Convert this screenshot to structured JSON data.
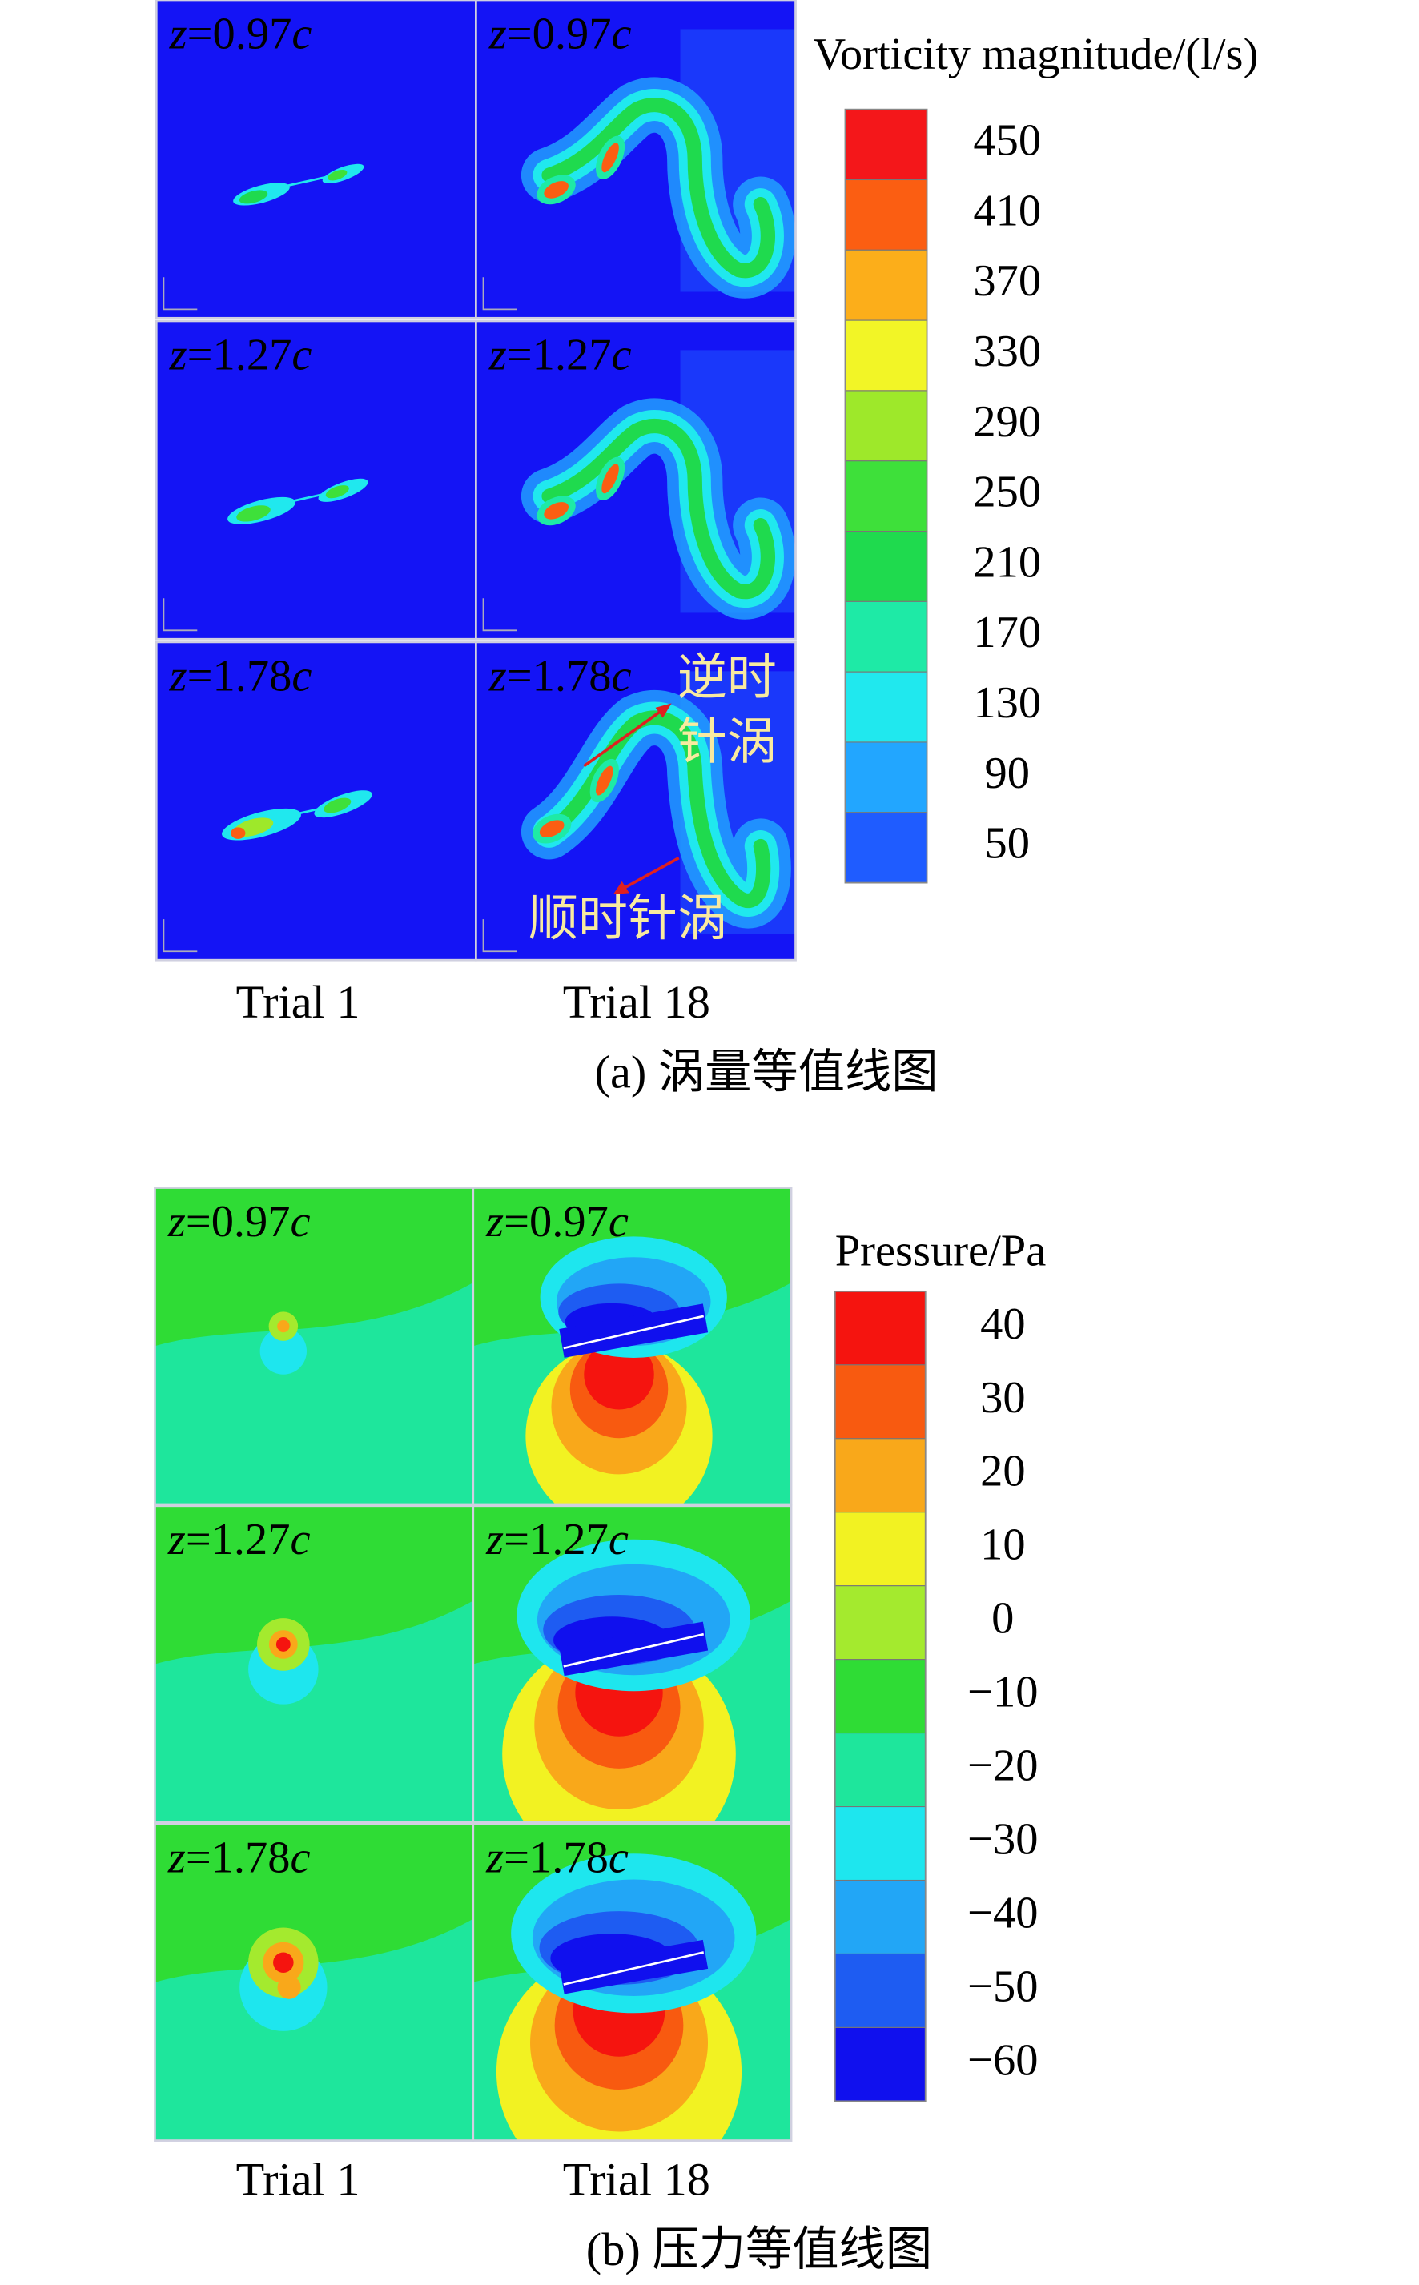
{
  "figure": {
    "a": {
      "rows": [
        "z=0.97c",
        "z=1.27c",
        "z=1.78c"
      ],
      "columns": [
        "Trial 1",
        "Trial 18"
      ],
      "caption": "(a) 涡量等值线图",
      "annotations": {
        "ccw": [
          "逆时",
          "针涡"
        ],
        "cw": "顺时针涡"
      },
      "colorbar": {
        "title": "Vorticity magnitude/(l/s)",
        "ticks": [
          450,
          410,
          370,
          330,
          290,
          250,
          210,
          170,
          130,
          90,
          50
        ],
        "colors": [
          "#f4171a",
          "#fb5e12",
          "#fcae1a",
          "#f2f526",
          "#9ee82a",
          "#3ee03a",
          "#1fda4e",
          "#1eeaa6",
          "#20e8ee",
          "#22a6ff",
          "#1f5cff",
          "#1414f5"
        ]
      }
    },
    "b": {
      "rows": [
        "z=0.97c",
        "z=1.27c",
        "z=1.78c"
      ],
      "columns": [
        "Trial 1",
        "Trial 18"
      ],
      "caption": "(b) 压力等值线图",
      "colorbar": {
        "title": "Pressure/Pa",
        "ticks": [
          40,
          30,
          20,
          10,
          0,
          {
            "value": -10,
            "label": "−10"
          },
          {
            "value": -20,
            "label": "−20"
          },
          {
            "value": -30,
            "label": "−30"
          },
          {
            "value": -40,
            "label": "−40"
          },
          {
            "value": -50,
            "label": "−50"
          },
          {
            "value": -60,
            "label": "−60"
          }
        ],
        "colors": [
          "#f5140f",
          "#f85a10",
          "#f9a81a",
          "#f2f222",
          "#a4ea2e",
          "#2fdc35",
          "#1ee69c",
          "#1ee6ee",
          "#22a6f6",
          "#1e5cf2",
          "#1010ee"
        ]
      }
    }
  }
}
